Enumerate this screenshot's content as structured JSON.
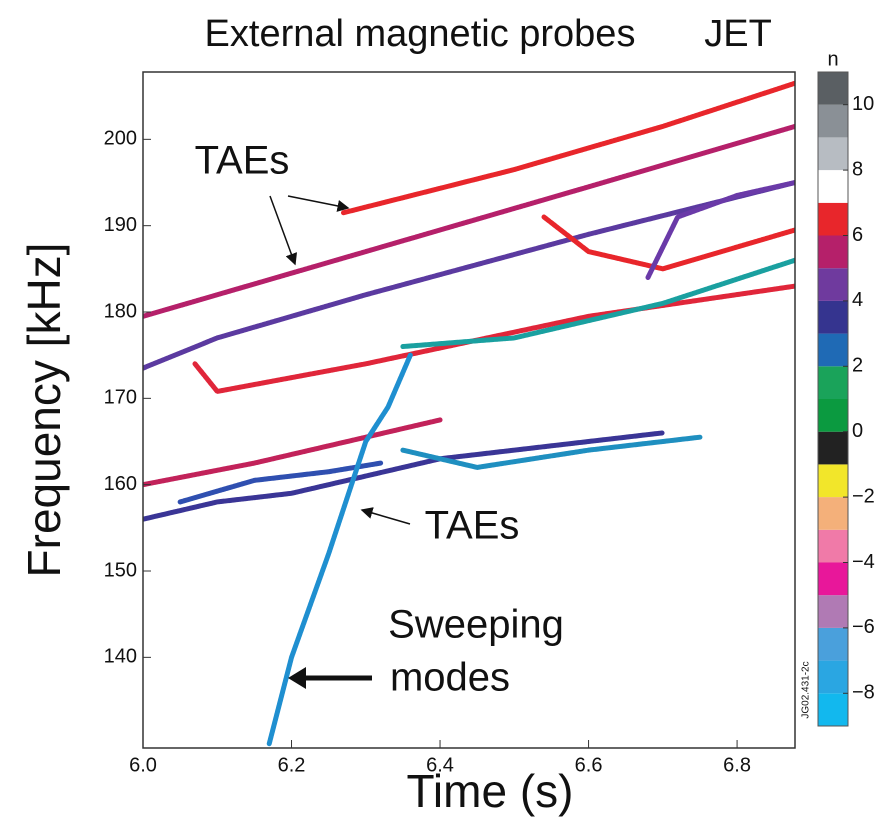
{
  "chart_data": {
    "type": "line",
    "title": "External magnetic probes",
    "subtitle": "JET",
    "x_label": "Time (s)",
    "y_label": "Frequency [kHz]",
    "xlim": [
      6.0,
      6.878
    ],
    "ylim": [
      129.5,
      207.8
    ],
    "xticks": [
      {
        "value": 6,
        "label": "6.0"
      },
      6.2,
      6.4,
      6.6,
      6.8
    ],
    "yticks": [
      140,
      150,
      160,
      170,
      180,
      190,
      200
    ],
    "series": [
      {
        "color": "#e8262b",
        "x": [
          6.27,
          6.5,
          6.7,
          6.878
        ],
        "values": [
          191.5,
          196.5,
          201.5,
          206.5
        ]
      },
      {
        "color": "#b5206a",
        "x": [
          6.0,
          6.3,
          6.6,
          6.878
        ],
        "values": [
          179.5,
          187,
          194.5,
          201.5
        ]
      },
      {
        "color": "#5b3aa0",
        "x": [
          6.0,
          6.1,
          6.3,
          6.6,
          6.878
        ],
        "values": [
          173.5,
          177,
          182,
          189,
          195
        ]
      },
      {
        "color": "#e0263a",
        "x": [
          6.07,
          6.1,
          6.3,
          6.6,
          6.878
        ],
        "values": [
          174,
          170.8,
          174,
          179.5,
          183
        ]
      },
      {
        "color": "#c2225a",
        "x": [
          6.0,
          6.15,
          6.3,
          6.4
        ],
        "values": [
          160,
          162.5,
          165.5,
          167.5
        ]
      },
      {
        "color": "#3a3596",
        "x": [
          6.0,
          6.1,
          6.2,
          6.3,
          6.4,
          6.6,
          6.7
        ],
        "values": [
          156,
          158,
          159,
          161,
          163,
          165,
          166
        ]
      },
      {
        "color": "#2f4fb0",
        "x": [
          6.05,
          6.15,
          6.25,
          6.32
        ],
        "values": [
          158,
          160.5,
          161.5,
          162.5
        ]
      },
      {
        "color": "#1f8fc0",
        "x": [
          6.35,
          6.45,
          6.6,
          6.75
        ],
        "values": [
          164,
          162,
          164,
          165.5
        ]
      },
      {
        "color": "#1aa0a0",
        "x": [
          6.35,
          6.5,
          6.7,
          6.878
        ],
        "values": [
          176,
          177,
          181,
          186
        ]
      },
      {
        "color": "#1f8fd0",
        "x": [
          6.17,
          6.2,
          6.25,
          6.3,
          6.33,
          6.36
        ],
        "values": [
          130,
          140,
          152,
          165,
          169,
          175
        ]
      },
      {
        "color": "#e8262b",
        "x": [
          6.54,
          6.6,
          6.7,
          6.878
        ],
        "values": [
          191,
          187,
          185,
          189.5
        ]
      },
      {
        "color": "#6a3aa8",
        "x": [
          6.68,
          6.72,
          6.8,
          6.878
        ],
        "values": [
          184,
          191,
          193.5,
          195
        ]
      }
    ],
    "colorbar": {
      "label": "n",
      "lim": [
        -9,
        11
      ],
      "ticks": [
        {
          "value": -8,
          "label": "−8"
        },
        {
          "value": -6,
          "label": "−6"
        },
        {
          "value": -4,
          "label": "−4"
        },
        {
          "value": -2,
          "label": "−2"
        },
        0,
        2,
        4,
        6,
        8,
        10
      ],
      "colors": [
        "#12b8ee",
        "#2aa6e2",
        "#4aa0dc",
        "#b07ab4",
        "#e8179a",
        "#f07aa8",
        "#f4b07a",
        "#f2e62a",
        "#222222",
        "#0b9a40",
        "#1aa35a",
        "#1f6ab5",
        "#35348f",
        "#6f3a9e",
        "#b5206a",
        "#e8262b",
        "#ffffff",
        "#b7bcc2",
        "#8a9096",
        "#5a5f63"
      ]
    },
    "annotations": [
      "TAEs",
      "TAEs",
      "Sweeping",
      "modes",
      "JG02.431-2c"
    ]
  }
}
